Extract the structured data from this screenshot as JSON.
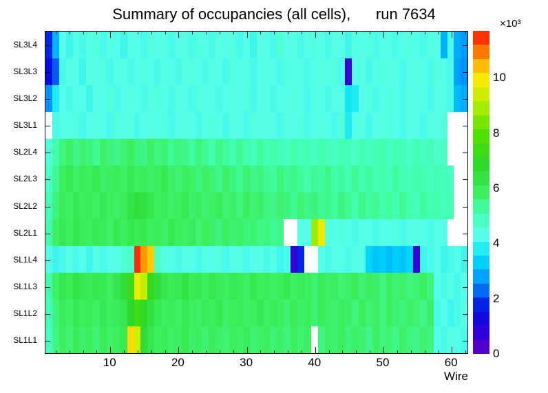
{
  "chart_data": {
    "type": "heatmap",
    "title": "Summary of occupancies (all cells),      run 7634",
    "xlabel": "Wire",
    "x_range": [
      1,
      62
    ],
    "x_ticks": [
      10,
      20,
      30,
      40,
      50,
      60
    ],
    "rows_top_to_bottom": [
      "SL3L4",
      "SL3L3",
      "SL3L2",
      "SL3L1",
      "SL2L4",
      "SL2L3",
      "SL2L2",
      "SL2L1",
      "SL1L4",
      "SL1L3",
      "SL1L2",
      "SL1L1"
    ],
    "z_max": 11700,
    "empty_color": "#ffffff",
    "values": [
      [
        1800,
        3000,
        4300,
        4100,
        4400,
        4200,
        4300,
        4500,
        4200,
        4400,
        4300,
        4100,
        4400,
        4300,
        4200,
        4500,
        4300,
        4400,
        4200,
        4300,
        4400,
        4200,
        4500,
        4300,
        4200,
        4400,
        4300,
        4500,
        4200,
        4300,
        4100,
        4400,
        4300,
        4200,
        4600,
        4300,
        4400,
        4200,
        4300,
        4500,
        4300,
        4200,
        4400,
        4300,
        4100,
        4400,
        4300,
        4500,
        4200,
        4300,
        4400,
        4200,
        4300,
        4500,
        4300,
        4200,
        4400,
        4300,
        3000,
        4200,
        2900,
        2700
      ],
      [
        1500,
        2200,
        4200,
        4400,
        4300,
        4100,
        4400,
        4300,
        4500,
        4200,
        4300,
        4400,
        4200,
        4300,
        4500,
        4300,
        4200,
        4400,
        4300,
        4200,
        4400,
        4500,
        4300,
        4200,
        4400,
        4300,
        4200,
        4500,
        4300,
        4400,
        4200,
        4300,
        4400,
        4300,
        4200,
        4500,
        4300,
        4400,
        4200,
        4300,
        4400,
        4300,
        4500,
        4200,
        600,
        4300,
        4400,
        4200,
        4300,
        4500,
        4300,
        4400,
        4200,
        4300,
        4400,
        4300,
        4200,
        4500,
        4300,
        4200,
        2800,
        2600
      ],
      [
        2600,
        3800,
        4300,
        4200,
        4400,
        4300,
        4100,
        4400,
        4300,
        4500,
        4200,
        4300,
        4400,
        4300,
        4200,
        4400,
        4500,
        4300,
        4200,
        4400,
        4300,
        4200,
        4500,
        4300,
        4400,
        4200,
        4300,
        4400,
        4300,
        4500,
        4200,
        4300,
        4400,
        4200,
        4300,
        4400,
        4500,
        4300,
        4200,
        4400,
        4300,
        4200,
        4400,
        4300,
        3700,
        3800,
        4300,
        4400,
        4200,
        4300,
        4500,
        4300,
        4200,
        4400,
        4300,
        4400,
        4200,
        4300,
        4400,
        4200,
        3100,
        2900
      ],
      [
        null,
        4200,
        4400,
        4300,
        4500,
        4200,
        4300,
        4400,
        4300,
        4200,
        4500,
        4300,
        4400,
        4200,
        4300,
        4400,
        4300,
        4500,
        4200,
        4300,
        4400,
        4300,
        4200,
        4400,
        4500,
        4300,
        4200,
        4400,
        4300,
        4200,
        4500,
        4300,
        4400,
        4300,
        4200,
        4400,
        4300,
        4500,
        4200,
        4300,
        4400,
        4300,
        4200,
        4500,
        3800,
        4300,
        4400,
        4200,
        4300,
        4400,
        4500,
        4300,
        4200,
        4400,
        4300,
        4200,
        4400,
        4300,
        4500,
        null,
        null,
        null
      ],
      [
        4600,
        5200,
        5600,
        5800,
        5500,
        5700,
        5600,
        5400,
        5800,
        5600,
        5500,
        5700,
        5900,
        5600,
        5500,
        5800,
        5600,
        5700,
        5400,
        5600,
        5500,
        5300,
        5600,
        5400,
        5200,
        5500,
        5300,
        5100,
        5400,
        5200,
        5000,
        5300,
        5100,
        5200,
        5000,
        4900,
        5200,
        5000,
        5100,
        4900,
        5200,
        5000,
        4900,
        5100,
        5000,
        4800,
        5100,
        4900,
        5000,
        5200,
        4900,
        5100,
        5000,
        4800,
        5100,
        4900,
        5000,
        4800,
        4900,
        null,
        null,
        null
      ],
      [
        4800,
        5400,
        5900,
        6100,
        5800,
        6000,
        5900,
        6100,
        5800,
        5900,
        6000,
        5800,
        6100,
        5900,
        6000,
        5800,
        5900,
        6100,
        5800,
        5700,
        5900,
        5800,
        5600,
        5800,
        5700,
        5500,
        5800,
        5600,
        5400,
        5700,
        5500,
        5600,
        5400,
        5300,
        5600,
        5400,
        5500,
        5300,
        5200,
        5400,
        5300,
        5500,
        5200,
        5300,
        5100,
        5400,
        5200,
        5300,
        5100,
        5200,
        5000,
        5300,
        5100,
        5000,
        5200,
        5100,
        4900,
        5100,
        5000,
        4900,
        null,
        null
      ],
      [
        5000,
        5600,
        6000,
        5800,
        6100,
        5900,
        6000,
        5800,
        6100,
        5900,
        5800,
        6000,
        6300,
        6500,
        6400,
        6200,
        5900,
        6000,
        5800,
        5900,
        6100,
        5800,
        5900,
        5700,
        5800,
        6000,
        5700,
        5800,
        5600,
        5900,
        5700,
        5800,
        5600,
        5500,
        5700,
        5600,
        5400,
        5700,
        5500,
        5600,
        5400,
        5500,
        5300,
        5600,
        5400,
        5200,
        5500,
        5300,
        5400,
        5200,
        5300,
        5100,
        5400,
        5200,
        5000,
        5300,
        5100,
        5200,
        5000,
        5100,
        null,
        null
      ],
      [
        5200,
        5800,
        6100,
        5900,
        6200,
        6000,
        5900,
        6100,
        6000,
        5800,
        6100,
        5900,
        6200,
        6000,
        6100,
        5900,
        6000,
        5800,
        6100,
        5900,
        5800,
        6000,
        5700,
        5900,
        5800,
        5600,
        5900,
        5700,
        5800,
        5600,
        5700,
        5500,
        5600,
        5400,
        5500,
        null,
        null,
        4400,
        4300,
        8800,
        9800,
        4400,
        4300,
        4500,
        4300,
        4200,
        4400,
        4300,
        4200,
        4400,
        4300,
        4500,
        4200,
        4300,
        4400,
        4300,
        4200,
        4400,
        4300,
        null,
        null,
        null
      ],
      [
        4300,
        4100,
        4200,
        4400,
        4200,
        4300,
        4100,
        4400,
        4200,
        4300,
        4400,
        4600,
        4800,
        11500,
        10700,
        10300,
        4800,
        4500,
        4300,
        4200,
        4400,
        4300,
        4200,
        4400,
        4300,
        4500,
        4200,
        4300,
        4400,
        4200,
        4300,
        4400,
        4200,
        4300,
        4100,
        4200,
        700,
        1800,
        null,
        null,
        4300,
        4200,
        4400,
        4300,
        4200,
        4400,
        4300,
        3400,
        3200,
        3300,
        3100,
        3300,
        3200,
        3400,
        600,
        4100,
        4200,
        4300,
        4100,
        4200,
        4300,
        4100
      ],
      [
        5200,
        5800,
        6200,
        6000,
        6300,
        6100,
        6000,
        6200,
        6100,
        5900,
        6200,
        6500,
        7200,
        9800,
        9200,
        7000,
        6500,
        6200,
        6000,
        6100,
        6300,
        6000,
        6100,
        5900,
        6200,
        6000,
        5900,
        6100,
        6000,
        5800,
        6100,
        5900,
        6000,
        5800,
        5900,
        6100,
        5800,
        6000,
        5900,
        5700,
        6000,
        5800,
        5900,
        5700,
        5800,
        6000,
        5700,
        5900,
        5800,
        5600,
        5900,
        5700,
        5800,
        5600,
        5700,
        5900,
        5600,
        4300,
        4200,
        4400,
        4200,
        4300
      ],
      [
        5000,
        5600,
        6000,
        5800,
        6100,
        5900,
        6000,
        5800,
        6100,
        5900,
        6000,
        6200,
        6800,
        7400,
        7000,
        6400,
        6100,
        5900,
        6000,
        5800,
        6100,
        5900,
        5800,
        6000,
        5900,
        6100,
        5800,
        5900,
        6000,
        5800,
        5900,
        6100,
        5800,
        6000,
        5900,
        5700,
        6000,
        5800,
        5900,
        5700,
        6000,
        5800,
        5700,
        5900,
        5800,
        5600,
        5900,
        5700,
        5800,
        5600,
        5900,
        5700,
        5600,
        5800,
        5700,
        5500,
        5800,
        4200,
        4300,
        4100,
        4200,
        4300
      ],
      [
        4900,
        5500,
        5900,
        5700,
        6000,
        5800,
        5900,
        5700,
        6000,
        5800,
        5900,
        6100,
        10200,
        9400,
        6600,
        6200,
        5900,
        6000,
        5800,
        5900,
        6100,
        5800,
        5900,
        5700,
        6000,
        5800,
        5700,
        5900,
        5800,
        6000,
        5700,
        5800,
        5900,
        5700,
        5800,
        5600,
        5900,
        5700,
        5800,
        null,
        5600,
        5800,
        5700,
        5900,
        5600,
        5800,
        5700,
        5500,
        5800,
        5600,
        5700,
        5500,
        5800,
        5600,
        5500,
        5700,
        5600,
        4300,
        4200,
        4400,
        4300,
        4200
      ]
    ]
  },
  "colorbar": {
    "exponent": "×10³",
    "ticks": [
      0,
      2,
      4,
      6,
      8,
      10
    ],
    "tick_scale": 1000,
    "blocks": 23,
    "palette": [
      {
        "t": 0.0,
        "color": "#6000c8"
      },
      {
        "t": 0.07,
        "color": "#2c00dc"
      },
      {
        "t": 0.14,
        "color": "#0010e0"
      },
      {
        "t": 0.22,
        "color": "#0090ff"
      },
      {
        "t": 0.3,
        "color": "#00e0f8"
      },
      {
        "t": 0.37,
        "color": "#58ffe8"
      },
      {
        "t": 0.44,
        "color": "#40ffb0"
      },
      {
        "t": 0.5,
        "color": "#3cf060"
      },
      {
        "t": 0.58,
        "color": "#2cd82c"
      },
      {
        "t": 0.68,
        "color": "#52e000"
      },
      {
        "t": 0.78,
        "color": "#b8f000"
      },
      {
        "t": 0.86,
        "color": "#ffeb00"
      },
      {
        "t": 0.92,
        "color": "#ff9100"
      },
      {
        "t": 1.0,
        "color": "#ff1000"
      }
    ]
  }
}
